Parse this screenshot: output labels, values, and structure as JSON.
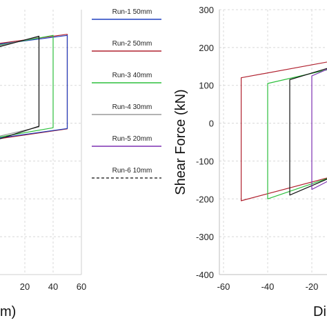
{
  "legend": [
    {
      "label": "Run-1 50mm",
      "color": "#1f3fbf",
      "dash": false
    },
    {
      "label": "Run-2 50mm",
      "color": "#b0202e",
      "dash": false
    },
    {
      "label": "Run-3 40mm",
      "color": "#2bbf3b",
      "dash": false
    },
    {
      "label": "Run-4 30mm",
      "color": "#9a9a9a",
      "dash": false
    },
    {
      "label": "Run-5 20mm",
      "color": "#7b2fb0",
      "dash": false
    },
    {
      "label": "Run-6 10mm",
      "color": "#333333",
      "dash": true
    }
  ],
  "chart_data": [
    {
      "type": "line",
      "xlabel": "m)",
      "ylabel": "",
      "xticks": [
        20,
        40,
        60
      ],
      "xlim": [
        0,
        60
      ],
      "yticks": [],
      "grid": true,
      "series": [
        {
          "color": "#b0202e",
          "x": [
            0,
            50,
            50,
            0
          ],
          "y": [
            210,
            235,
            -15,
            -42
          ]
        },
        {
          "color": "#1f3fbf",
          "x": [
            0,
            50,
            50,
            0
          ],
          "y": [
            208,
            232,
            -14,
            -40
          ]
        },
        {
          "color": "#2bbf3b",
          "x": [
            0,
            40,
            40,
            0
          ],
          "y": [
            205,
            232,
            -12,
            -38
          ]
        },
        {
          "color": "#9a9a9a",
          "x": [
            0,
            30,
            30,
            0
          ],
          "y": [
            203,
            228,
            -10,
            -36
          ]
        },
        {
          "color": "#111111",
          "x": [
            0,
            30,
            30,
            0
          ],
          "y": [
            200,
            230,
            -8,
            -44
          ]
        }
      ]
    },
    {
      "type": "line",
      "xlabel": "Di",
      "ylabel": "Shear Force (kN)",
      "xticks": [
        -60,
        -40,
        -20
      ],
      "xlim": [
        -60,
        -10
      ],
      "yticks": [
        300,
        200,
        100,
        0,
        -100,
        -200,
        -300,
        -400
      ],
      "ylim": [
        -400,
        300
      ],
      "grid": true,
      "series": [
        {
          "color": "#b0202e",
          "x": [
            -10,
            -52,
            -52,
            -10
          ],
          "y": [
            -140,
            -205,
            120,
            165
          ]
        },
        {
          "color": "#2bbf3b",
          "x": [
            -10,
            -40,
            -40,
            -10
          ],
          "y": [
            -140,
            -200,
            105,
            145
          ]
        },
        {
          "color": "#111111",
          "x": [
            -10,
            -30,
            -30,
            -10
          ],
          "y": [
            -140,
            -190,
            115,
            150
          ]
        },
        {
          "color": "#7b2fb0",
          "x": [
            -10,
            -20,
            -20,
            -10
          ],
          "y": [
            -145,
            -175,
            125,
            150
          ]
        }
      ]
    }
  ]
}
